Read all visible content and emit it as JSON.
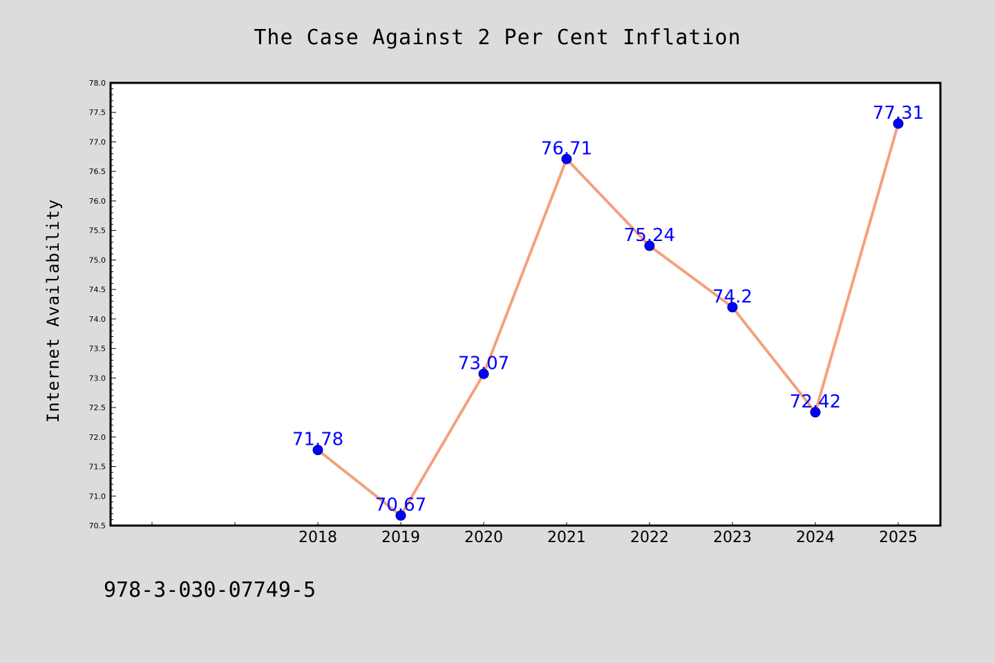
{
  "chart_data": {
    "type": "line",
    "title": "The Case Against 2 Per Cent Inflation",
    "ylabel": "Internet Availability",
    "xlabel": "",
    "categories": [
      "2018",
      "2019",
      "2020",
      "2021",
      "2022",
      "2023",
      "2024",
      "2025"
    ],
    "values": [
      71.78,
      70.67,
      73.07,
      76.71,
      75.24,
      74.2,
      72.42,
      77.31
    ],
    "data_labels": [
      "71.78",
      "70.67",
      "73.07",
      "76.71",
      "75.24",
      "74.2",
      "72.42",
      "77.31"
    ],
    "ylim": [
      70.5,
      78.0
    ],
    "yticks": [
      "70.5",
      "71.0",
      "71.5",
      "72.0",
      "72.5",
      "73.0",
      "73.5",
      "74.0",
      "74.5",
      "75.0",
      "75.5",
      "76.0",
      "76.5",
      "77.0",
      "77.5",
      "78.0"
    ],
    "line_color": "#f4a07c",
    "marker_color": "#0000ff",
    "label_color": "#0000ff",
    "background_color": "#dcdcdc",
    "plot_background": "#ffffff",
    "grid": false,
    "legend": "none"
  },
  "footer_text": "978-3-030-07749-5"
}
